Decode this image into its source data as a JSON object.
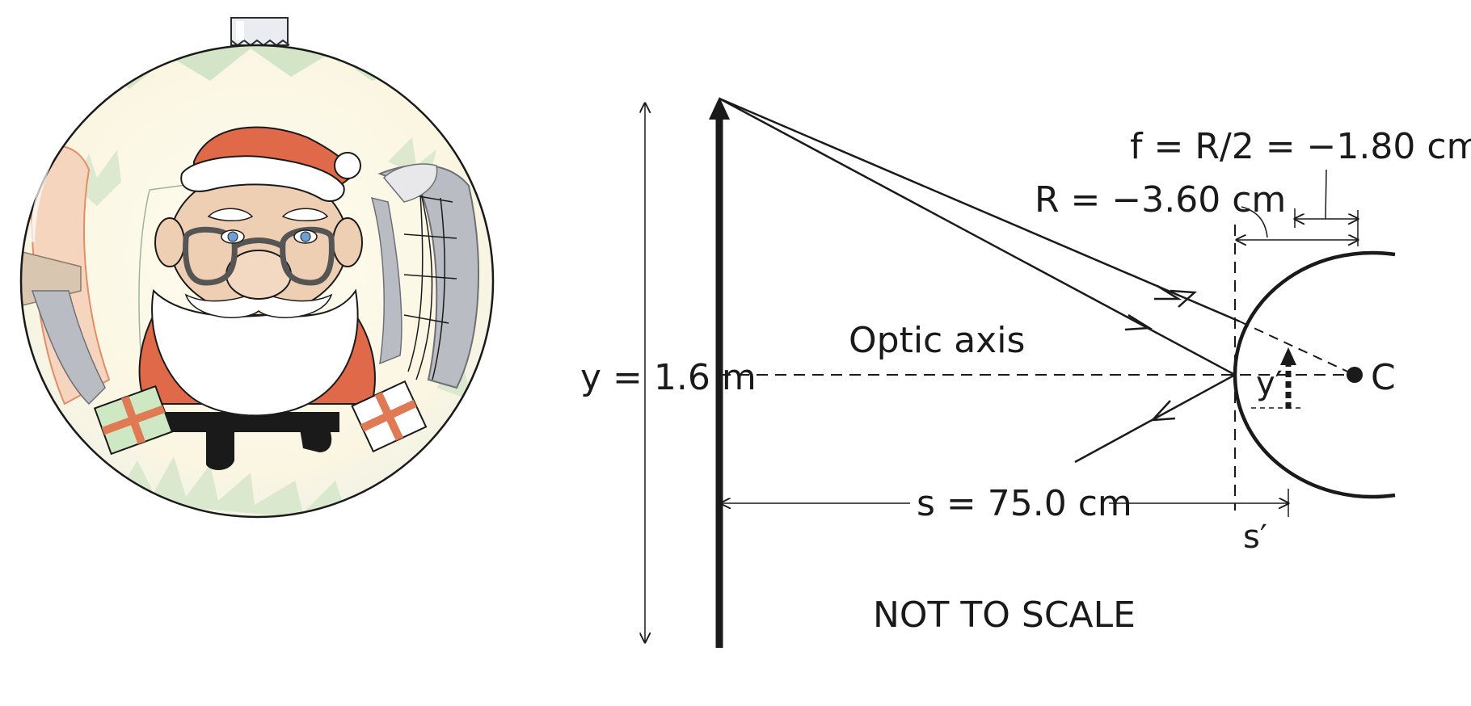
{
  "labels": {
    "focal": "f = R/2 = −1.80 cm",
    "radius": "R = −3.60 cm",
    "optic_axis": "Optic axis",
    "object_height": "y = 1.6 m",
    "image_height": "y′",
    "center": "C",
    "object_distance": "s = 75.0 cm",
    "image_distance": "s′",
    "scale_note": "NOT TO SCALE"
  },
  "colors": {
    "ink": "#1a1a1a",
    "santa_red": "#e0694a",
    "skin": "#efcfb4",
    "foliage": "#cfe3c4",
    "eye_blue": "#6d9ed4",
    "gray": "#b9bcc2",
    "gift_red": "#e07a55"
  }
}
